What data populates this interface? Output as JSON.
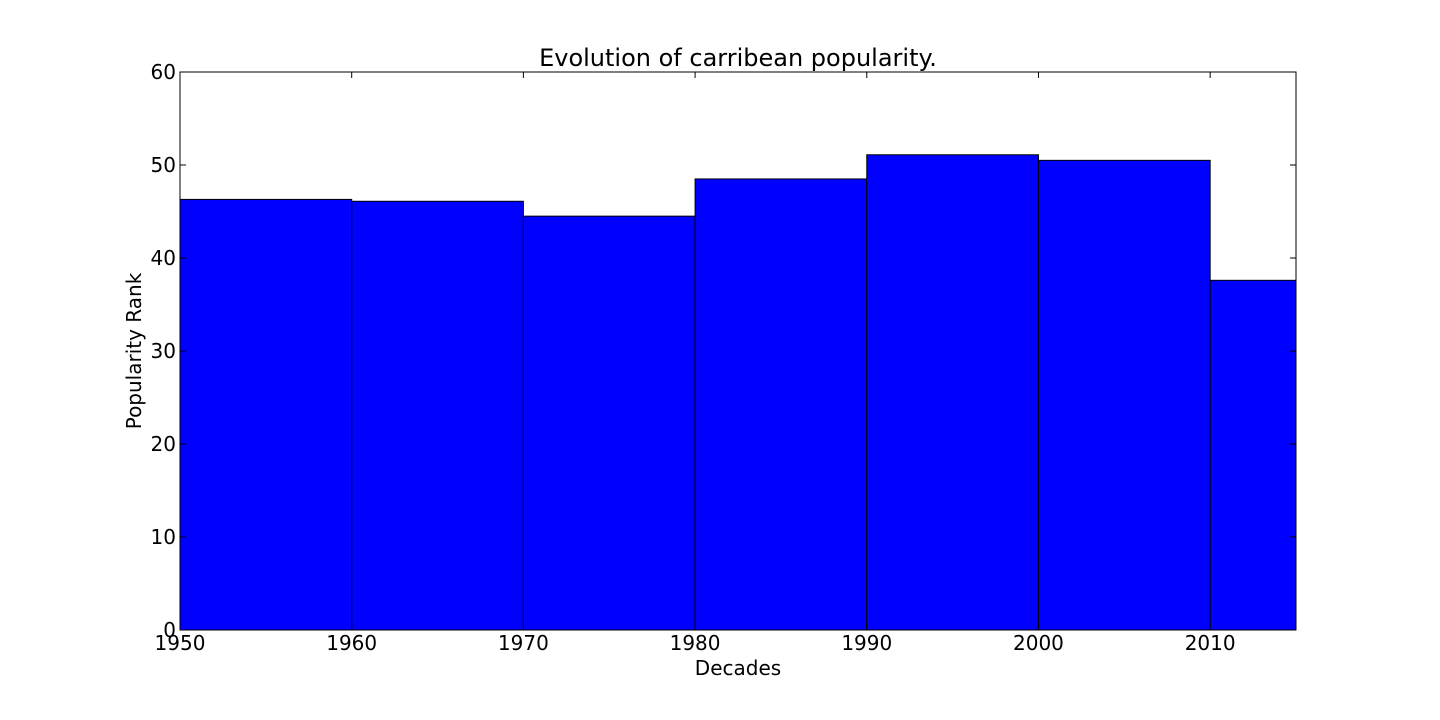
{
  "chart_data": {
    "type": "bar",
    "title": "Evolution of carribean popularity.",
    "xlabel": "Decades",
    "ylabel": "Popularity Rank",
    "xlim": [
      1950,
      2015
    ],
    "ylim": [
      0,
      60
    ],
    "xticks": [
      "1950",
      "1960",
      "1970",
      "1980",
      "1990",
      "2000",
      "2010"
    ],
    "yticks": [
      "0",
      "10",
      "20",
      "30",
      "40",
      "50",
      "60"
    ],
    "bins": [
      {
        "start": 1950,
        "end": 1960,
        "value": 46.3
      },
      {
        "start": 1960,
        "end": 1970,
        "value": 46.1
      },
      {
        "start": 1970,
        "end": 1980,
        "value": 44.5
      },
      {
        "start": 1980,
        "end": 1990,
        "value": 48.5
      },
      {
        "start": 1990,
        "end": 2000,
        "value": 51.1
      },
      {
        "start": 2000,
        "end": 2010,
        "value": 50.5
      },
      {
        "start": 2010,
        "end": 2015,
        "value": 37.6
      }
    ],
    "bar_color": "#0000ff",
    "edge_color": "#000000",
    "grid": false,
    "legend": "none"
  }
}
